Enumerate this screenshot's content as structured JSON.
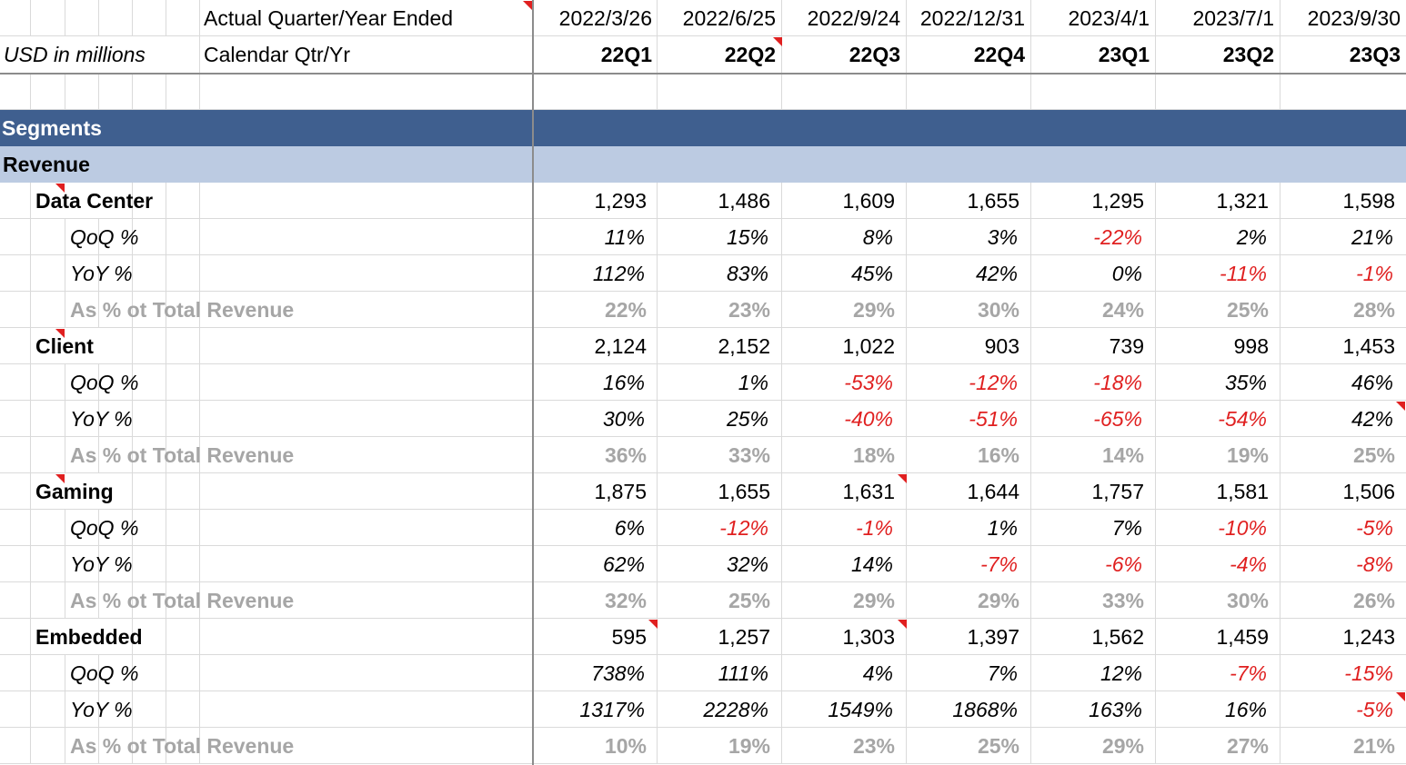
{
  "header": {
    "row1_label": "Actual Quarter/Year Ended",
    "row2_left": "USD in millions",
    "row2_label": "Calendar Qtr/Yr",
    "dates": [
      "2022/3/26",
      "2022/6/25",
      "2022/9/24",
      "2022/12/31",
      "2023/4/1",
      "2023/7/1",
      "2023/9/30"
    ],
    "quarters": [
      "22Q1",
      "22Q2",
      "22Q3",
      "22Q4",
      "23Q1",
      "23Q2",
      "23Q3"
    ]
  },
  "sections": {
    "segments_label": "Segments",
    "revenue_label": "Revenue"
  },
  "rows": [
    {
      "label": "Data Center",
      "style": "bold",
      "values": [
        "1,293",
        "1,486",
        "1,609",
        "1,655",
        "1,295",
        "1,321",
        "1,598"
      ]
    },
    {
      "label": "QoQ %",
      "style": "italic",
      "values": [
        "11%",
        "15%",
        "8%",
        "3%",
        "-22%",
        "2%",
        "21%"
      ]
    },
    {
      "label": "YoY %",
      "style": "italic",
      "values": [
        "112%",
        "83%",
        "45%",
        "42%",
        "0%",
        "-11%",
        "-1%"
      ]
    },
    {
      "label": "As % ot Total Revenue",
      "style": "grey",
      "values": [
        "22%",
        "23%",
        "29%",
        "30%",
        "24%",
        "25%",
        "28%"
      ]
    },
    {
      "label": "Client",
      "style": "bold",
      "values": [
        "2,124",
        "2,152",
        "1,022",
        "903",
        "739",
        "998",
        "1,453"
      ]
    },
    {
      "label": "QoQ %",
      "style": "italic",
      "values": [
        "16%",
        "1%",
        "-53%",
        "-12%",
        "-18%",
        "35%",
        "46%"
      ]
    },
    {
      "label": "YoY %",
      "style": "italic",
      "values": [
        "30%",
        "25%",
        "-40%",
        "-51%",
        "-65%",
        "-54%",
        "42%"
      ]
    },
    {
      "label": "As % ot Total Revenue",
      "style": "grey",
      "values": [
        "36%",
        "33%",
        "18%",
        "16%",
        "14%",
        "19%",
        "25%"
      ]
    },
    {
      "label": "Gaming",
      "style": "bold",
      "values": [
        "1,875",
        "1,655",
        "1,631",
        "1,644",
        "1,757",
        "1,581",
        "1,506"
      ]
    },
    {
      "label": "QoQ %",
      "style": "italic",
      "values": [
        "6%",
        "-12%",
        "-1%",
        "1%",
        "7%",
        "-10%",
        "-5%"
      ]
    },
    {
      "label": "YoY %",
      "style": "italic",
      "values": [
        "62%",
        "32%",
        "14%",
        "-7%",
        "-6%",
        "-4%",
        "-8%"
      ]
    },
    {
      "label": "As % ot Total Revenue",
      "style": "grey",
      "values": [
        "32%",
        "25%",
        "29%",
        "29%",
        "33%",
        "30%",
        "26%"
      ]
    },
    {
      "label": "Embedded",
      "style": "bold",
      "values": [
        "595",
        "1,257",
        "1,303",
        "1,397",
        "1,562",
        "1,459",
        "1,243"
      ]
    },
    {
      "label": "QoQ %",
      "style": "italic",
      "values": [
        "738%",
        "111%",
        "4%",
        "7%",
        "12%",
        "-7%",
        "-15%"
      ]
    },
    {
      "label": "YoY %",
      "style": "italic",
      "values": [
        "1317%",
        "2228%",
        "1549%",
        "1868%",
        "163%",
        "16%",
        "-5%"
      ]
    },
    {
      "label": "As % ot Total Revenue",
      "style": "grey",
      "values": [
        "10%",
        "19%",
        "23%",
        "25%",
        "29%",
        "27%",
        "21%"
      ]
    }
  ],
  "colors": {
    "segments_band": "#3f5f8f",
    "revenue_band": "#bccbe2",
    "negative": "#e02020",
    "grey_text": "#a6a6a6",
    "comment_marker": "#e02020"
  }
}
